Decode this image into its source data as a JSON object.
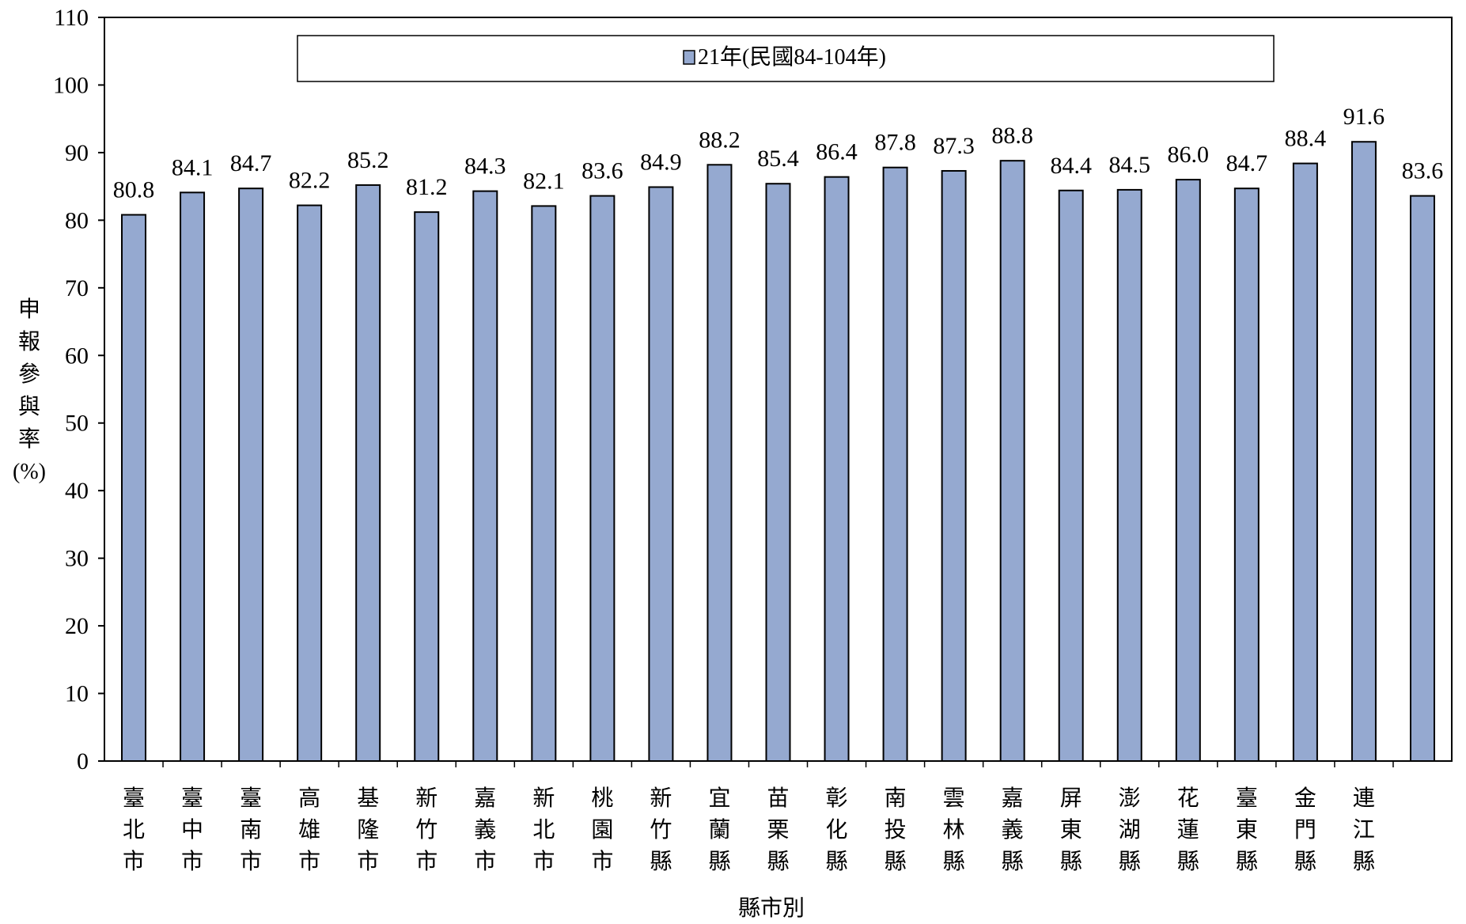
{
  "chart_data": {
    "type": "bar",
    "categories": [
      "臺北市",
      "臺中市",
      "臺南市",
      "高雄市",
      "基隆市",
      "新竹市",
      "嘉義市",
      "新北市",
      "桃園市",
      "新竹縣",
      "宜蘭縣",
      "苗栗縣",
      "彰化縣",
      "南投縣",
      "雲林縣",
      "嘉義縣",
      "屏東縣",
      "澎湖縣",
      "花蓮縣",
      "臺東縣",
      "金門縣",
      "連江縣",
      ""
    ],
    "series": [
      {
        "name": "21年(民國84-104年)",
        "values": [
          80.8,
          84.1,
          84.7,
          82.2,
          85.2,
          81.2,
          84.3,
          82.1,
          83.6,
          84.9,
          88.2,
          85.4,
          86.4,
          87.8,
          87.3,
          88.8,
          84.4,
          84.5,
          86.0,
          84.7,
          88.4,
          91.6,
          83.6
        ],
        "value_labels": [
          "80.8",
          "84.1",
          "84.7",
          "82.2",
          "85.2",
          "81.2",
          "84.3",
          "82.1",
          "83.6",
          "84.9",
          "88.2",
          "85.4",
          "86.4",
          "87.8",
          "87.3",
          "88.8",
          "84.4",
          "84.5",
          "86.0",
          "84.7",
          "88.4",
          "91.6",
          "83.6"
        ]
      }
    ],
    "xlabel": "縣市別",
    "ylabel": "申報參與率(%)",
    "ylabel_lines": [
      "申",
      "報",
      "參",
      "與",
      "率",
      "(%)"
    ],
    "ylim": [
      0,
      110
    ],
    "yticks": [
      0,
      10,
      20,
      30,
      40,
      50,
      60,
      70,
      80,
      90,
      100,
      110
    ],
    "grid": false,
    "legend_position": "top-center",
    "bar_color": "#95A9D0",
    "bar_edge_color": "#000000"
  }
}
